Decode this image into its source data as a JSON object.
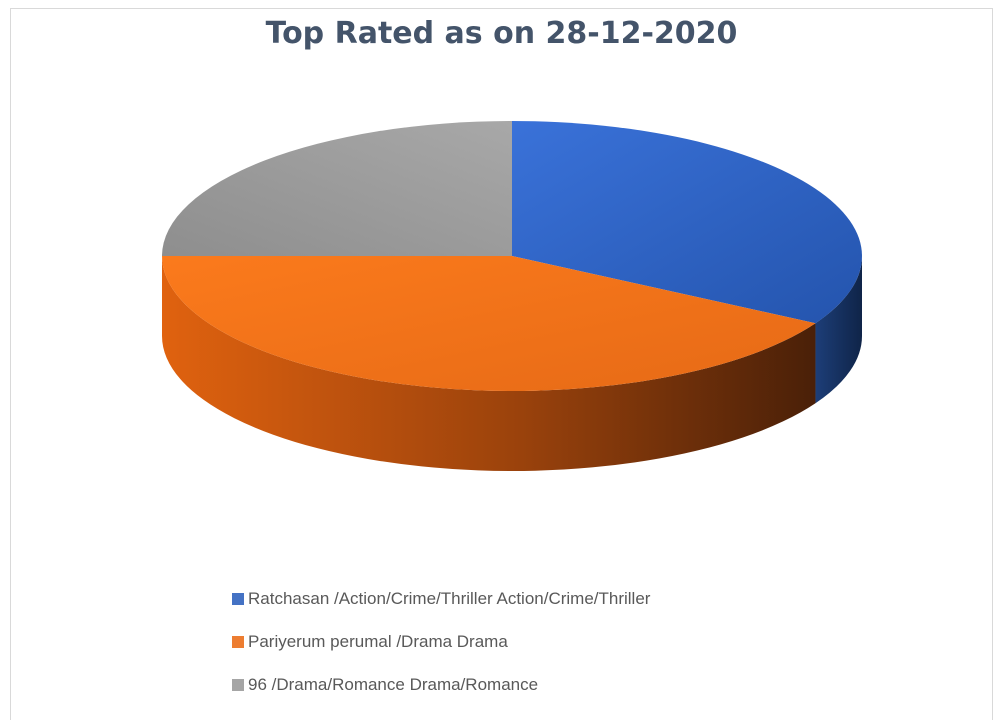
{
  "chart_data": {
    "type": "pie",
    "title": "Top Rated as on 28-12-2020",
    "categories": [
      "Ratchasan  /Action/Crime/Thriller Action/Crime/Thriller",
      "Pariyerum perumal  /Drama Drama",
      "96  /Drama/Romance Drama/Romance"
    ],
    "values": [
      33.3,
      41.7,
      25.0
    ],
    "colors": [
      "#4472c4",
      "#ed7d31",
      "#a5a5a5"
    ],
    "style": "3d",
    "legend_position": "bottom"
  }
}
